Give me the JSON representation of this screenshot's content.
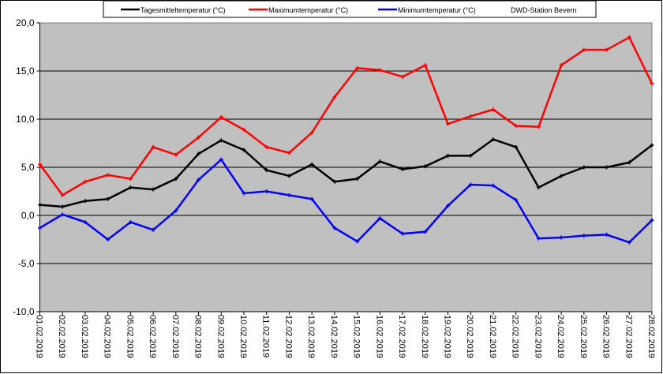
{
  "chart_data": {
    "type": "line",
    "title": "",
    "xlabel": "",
    "ylabel": "",
    "ylim": [
      -10,
      20
    ],
    "ytick_step": 5,
    "ytick_labels": [
      "-10,0",
      "-5,0",
      "0,0",
      "5,0",
      "10,0",
      "15,0",
      "20,0"
    ],
    "grid": true,
    "plot_background": "#C0C0C0",
    "legend_position": "top",
    "legend_note": "DWD-Station Bevern",
    "categories": [
      "01.02.2019",
      "02.02.2019",
      "03.02.2019",
      "04.02.2019",
      "05.02.2019",
      "06.02.2019",
      "07.02.2019",
      "08.02.2019",
      "09.02.2019",
      "10.02.2019",
      "11.02.2019",
      "12.02.2019",
      "13.02.2019",
      "14.02.2019",
      "15.02.2019",
      "16.02.2019",
      "17.02.2019",
      "18.02.2019",
      "19.02.2019",
      "20.02.2019",
      "21.02.2019",
      "22.02.2019",
      "23.02.2019",
      "24.02.2019",
      "25.02.2019",
      "26.02.2019",
      "27.02.2019",
      "28.02.2019"
    ],
    "series": [
      {
        "name": "Tagesmitteltemperatur (°C)",
        "color": "#000000",
        "values": [
          1.1,
          0.9,
          1.5,
          1.7,
          2.9,
          2.7,
          3.8,
          6.4,
          7.8,
          6.8,
          4.7,
          4.1,
          5.3,
          3.5,
          3.8,
          5.6,
          4.8,
          5.1,
          6.2,
          6.2,
          7.9,
          7.1,
          2.9,
          4.1,
          5.0,
          5.0,
          5.5,
          7.3
        ]
      },
      {
        "name": "Maximumtemperatur (°C)",
        "color": "#FF0000",
        "values": [
          5.3,
          2.1,
          3.5,
          4.2,
          3.8,
          7.1,
          6.3,
          8.1,
          10.2,
          8.9,
          7.1,
          6.5,
          8.6,
          12.3,
          15.3,
          15.1,
          14.4,
          15.6,
          9.5,
          10.3,
          11.0,
          9.3,
          9.2,
          15.6,
          17.2,
          17.2,
          18.5,
          13.7
        ]
      },
      {
        "name": "Minimumtemperatur (°C)",
        "color": "#0000FF",
        "values": [
          -1.3,
          0.1,
          -0.7,
          -2.5,
          -0.7,
          -1.5,
          0.5,
          3.7,
          5.8,
          2.3,
          2.5,
          2.1,
          1.7,
          -1.3,
          -2.7,
          -0.3,
          -1.9,
          -1.7,
          1.0,
          3.2,
          3.1,
          1.6,
          -2.4,
          -2.3,
          -2.1,
          -2.0,
          -2.8,
          -0.5
        ]
      }
    ]
  }
}
